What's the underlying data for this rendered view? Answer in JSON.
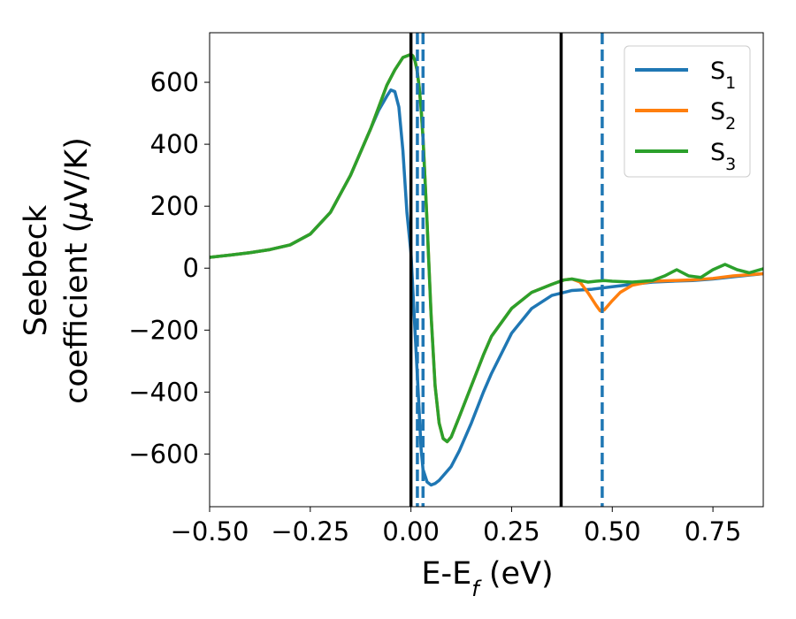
{
  "chart_data": {
    "type": "line",
    "title": "",
    "xlabel": {
      "main": "E-E",
      "sub": "f",
      "suffix": " (eV)"
    },
    "ylabel": {
      "line1": "Seebeck",
      "line2_pre": "coefficient  (",
      "mu": "μ",
      "line2_post": "V/K)"
    },
    "xlim": [
      -0.5,
      0.875
    ],
    "ylim": [
      -770,
      760
    ],
    "xticks": [
      -0.5,
      -0.25,
      0.0,
      0.25,
      0.5,
      0.75
    ],
    "xtick_labels": [
      "−0.50",
      "−0.25",
      "0.00",
      "0.25",
      "0.50",
      "0.75"
    ],
    "yticks": [
      -600,
      -400,
      -200,
      0,
      200,
      400,
      600
    ],
    "ytick_labels": [
      "−600",
      "−400",
      "−200",
      "0",
      "200",
      "400",
      "600"
    ],
    "grid": false,
    "legend_position": "top-right",
    "series": [
      {
        "name": "S",
        "sub": "1",
        "color": "#1f77b4",
        "x": [
          -0.5,
          -0.45,
          -0.4,
          -0.35,
          -0.3,
          -0.25,
          -0.2,
          -0.15,
          -0.1,
          -0.08,
          -0.06,
          -0.05,
          -0.04,
          -0.03,
          -0.02,
          -0.01,
          0.0,
          0.01,
          0.02,
          0.025,
          0.03,
          0.04,
          0.05,
          0.06,
          0.07,
          0.08,
          0.1,
          0.12,
          0.15,
          0.18,
          0.2,
          0.25,
          0.3,
          0.35,
          0.4,
          0.45,
          0.5,
          0.55,
          0.6,
          0.65,
          0.7,
          0.75,
          0.8,
          0.875
        ],
        "y": [
          35,
          42,
          50,
          60,
          75,
          110,
          180,
          300,
          450,
          510,
          555,
          575,
          570,
          520,
          380,
          180,
          50,
          -200,
          -450,
          -580,
          -650,
          -690,
          -700,
          -695,
          -685,
          -670,
          -640,
          -590,
          -500,
          -400,
          -340,
          -210,
          -130,
          -88,
          -72,
          -68,
          -60,
          -52,
          -45,
          -42,
          -40,
          -35,
          -28,
          -18
        ]
      },
      {
        "name": "S",
        "sub": "2",
        "color": "#ff7f0e",
        "x": [
          -0.5,
          -0.45,
          -0.4,
          -0.35,
          -0.3,
          -0.25,
          -0.2,
          -0.15,
          -0.1,
          -0.08,
          -0.06,
          -0.04,
          -0.02,
          0.0,
          0.005,
          0.01,
          0.015,
          0.02,
          0.025,
          0.03,
          0.04,
          0.05,
          0.06,
          0.07,
          0.08,
          0.09,
          0.1,
          0.12,
          0.15,
          0.18,
          0.2,
          0.25,
          0.3,
          0.35,
          0.38,
          0.4,
          0.42,
          0.44,
          0.46,
          0.47,
          0.48,
          0.5,
          0.52,
          0.55,
          0.6,
          0.65,
          0.7,
          0.75,
          0.8,
          0.875
        ],
        "y": [
          35,
          42,
          50,
          60,
          75,
          110,
          180,
          300,
          450,
          520,
          590,
          640,
          680,
          690,
          685,
          670,
          640,
          590,
          520,
          420,
          150,
          -150,
          -380,
          -500,
          -550,
          -560,
          -545,
          -480,
          -380,
          -280,
          -220,
          -130,
          -78,
          -52,
          -38,
          -35,
          -45,
          -80,
          -120,
          -138,
          -135,
          -105,
          -78,
          -55,
          -42,
          -40,
          -38,
          -33,
          -25,
          -18
        ]
      },
      {
        "name": "S",
        "sub": "3",
        "color": "#2ca02c",
        "x": [
          -0.5,
          -0.45,
          -0.4,
          -0.35,
          -0.3,
          -0.25,
          -0.2,
          -0.15,
          -0.1,
          -0.08,
          -0.06,
          -0.04,
          -0.02,
          0.0,
          0.005,
          0.01,
          0.015,
          0.02,
          0.025,
          0.03,
          0.04,
          0.05,
          0.06,
          0.07,
          0.08,
          0.09,
          0.1,
          0.12,
          0.15,
          0.18,
          0.2,
          0.25,
          0.3,
          0.35,
          0.38,
          0.4,
          0.42,
          0.44,
          0.46,
          0.48,
          0.5,
          0.55,
          0.6,
          0.63,
          0.66,
          0.69,
          0.72,
          0.75,
          0.78,
          0.81,
          0.84,
          0.875
        ],
        "y": [
          35,
          42,
          50,
          60,
          75,
          110,
          180,
          300,
          450,
          520,
          590,
          640,
          680,
          690,
          685,
          670,
          640,
          590,
          520,
          420,
          150,
          -150,
          -380,
          -500,
          -550,
          -560,
          -545,
          -480,
          -380,
          -280,
          -220,
          -130,
          -78,
          -52,
          -38,
          -35,
          -40,
          -45,
          -42,
          -40,
          -42,
          -45,
          -40,
          -25,
          -5,
          -25,
          -30,
          -5,
          12,
          -5,
          -15,
          -2
        ]
      }
    ],
    "vlines": [
      {
        "x": 0.0,
        "style": "solid",
        "color": "#000000"
      },
      {
        "x": 0.016,
        "style": "dashed",
        "color": "#1f77b4"
      },
      {
        "x": 0.03,
        "style": "dashed",
        "color": "#1f77b4"
      },
      {
        "x": 0.373,
        "style": "solid",
        "color": "#000000"
      },
      {
        "x": 0.475,
        "style": "dashed",
        "color": "#1f77b4"
      }
    ]
  }
}
